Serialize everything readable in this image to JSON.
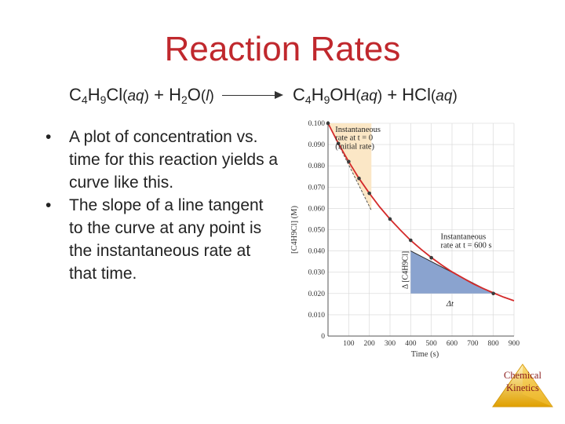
{
  "slide": {
    "title": "Reaction Rates",
    "equation": {
      "r1_a": "C",
      "r1_s1": "4",
      "r1_b": "H",
      "r1_s2": "9",
      "r1_c": "Cl",
      "r1_state": "aq",
      "plus1": "+",
      "r2_a": "H",
      "r2_s1": "2",
      "r2_b": "O",
      "r2_state": "l",
      "p1_a": "C",
      "p1_s1": "4",
      "p1_b": "H",
      "p1_s2": "9",
      "p1_c": "OH",
      "p1_state": "aq",
      "plus2": "+",
      "p2": "HCl",
      "p2_state": "aq"
    },
    "bullets": [
      "A plot of concentration vs. time for this reaction yields a curve like this.",
      "The slope of a line tangent to the curve at any point is the instantaneous rate at that time."
    ],
    "bullet_glyph": "•",
    "footer_logo": {
      "line1": "Chemical",
      "line2": "Kinetics"
    }
  },
  "chart_data": {
    "type": "line",
    "xlabel": "Time (s)",
    "ylabel": "[C4H9Cl] (M)",
    "xlim": [
      0,
      900
    ],
    "ylim": [
      0,
      0.1
    ],
    "x_ticks": [
      "100",
      "200",
      "300",
      "400",
      "500",
      "600",
      "700",
      "800",
      "900"
    ],
    "y_ticks": [
      "0.100",
      "0.090",
      "0.080",
      "0.070",
      "0.060",
      "0.050",
      "0.040",
      "0.030",
      "0.020",
      "0.010",
      "0"
    ],
    "grid": true,
    "series": [
      {
        "x": [
          0,
          50,
          100,
          150,
          200,
          250,
          300,
          350,
          400,
          450,
          500,
          550,
          600,
          650,
          700,
          750,
          800,
          850,
          900
        ],
        "y": [
          0.1,
          0.0905,
          0.082,
          0.0741,
          0.0671,
          0.0607,
          0.055,
          0.0498,
          0.045,
          0.0408,
          0.0369,
          0.0334,
          0.0302,
          0.0274,
          0.0247,
          0.0224,
          0.0203,
          0.0183,
          0.0166
        ]
      }
    ],
    "data_points": {
      "x": [
        0,
        50,
        100,
        150,
        200,
        300,
        400,
        500,
        800
      ],
      "y": [
        0.1,
        0.0905,
        0.082,
        0.0741,
        0.0671,
        0.055,
        0.045,
        0.0368,
        0.02
      ]
    },
    "tangent_initial": {
      "x": [
        0,
        210
      ],
      "y": [
        0.1,
        0.059
      ],
      "triangle_corner": {
        "x": 210,
        "y": 0.1
      }
    },
    "tangent_600": {
      "x": [
        400,
        800
      ],
      "y": [
        0.04,
        0.02
      ],
      "triangle_corner": {
        "x": 400,
        "y": 0.02
      }
    },
    "colors": {
      "curve": "#d42a2a",
      "points": "#3b3b3b",
      "initial_fill": "#fbe7c6",
      "fill_600": "#8aa3cf"
    },
    "annotations": {
      "initial": {
        "line1": "Instantaneous",
        "line2": "rate at t = 0",
        "line3": "(initial rate)"
      },
      "at600": {
        "line1": "Instantaneous",
        "line2": "rate at t = 600 s"
      },
      "delta_conc": "Δ [C4H9Cl]",
      "delta_t": "Δt"
    }
  }
}
